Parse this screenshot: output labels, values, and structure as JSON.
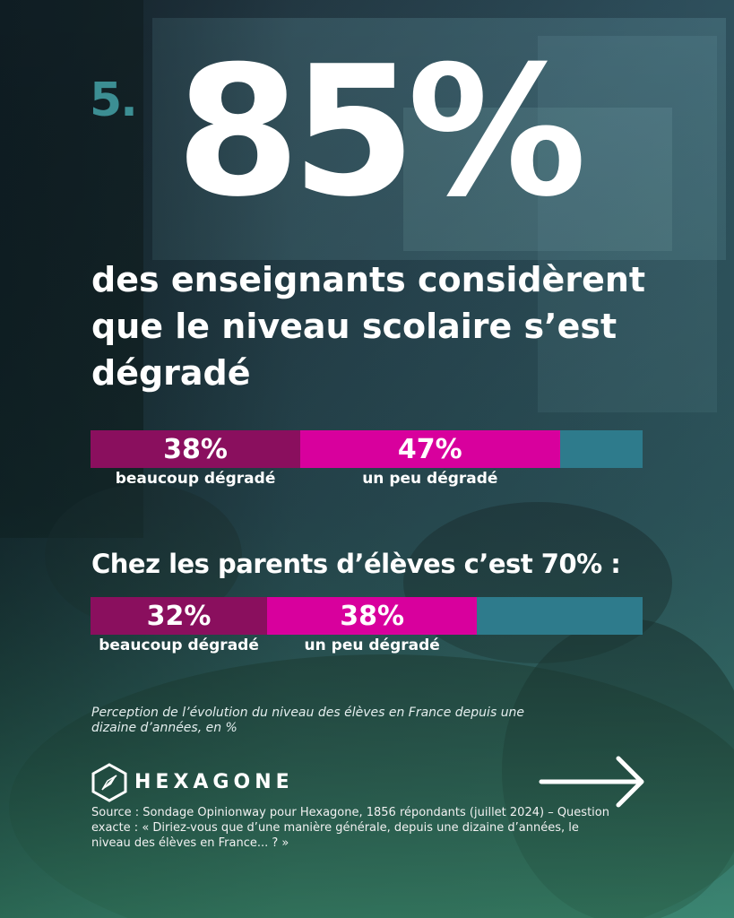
{
  "headline": {
    "number": "5.",
    "big_stat": "85%",
    "text": "des enseignants considèrent que le niveau scolaire s’est dégradé"
  },
  "subheading": "Chez les parents d’élèves c’est 70% :",
  "note": "Perception de l’évolution du niveau des élèves en France depuis une dizaine d’années, en %",
  "brand": "HEXAGONE",
  "source": "Source : Sondage Opinionway pour Hexagone, 1856 répondants (juillet 2024) – Question exacte : «  Diriez-vous que d’une manière générale, depuis une dizaine d’années, le niveau des élèves en France... ? »",
  "colors": {
    "beaucoup": "#8a0f5e",
    "un_peu": "#d8009d",
    "rest": "#2e7b8c",
    "number": "#3c8e93"
  },
  "chart_data": [
    {
      "type": "bar",
      "orientation": "horizontal-stacked",
      "series": [
        {
          "name": "beaucoup dégradé",
          "value": 38,
          "label": "38%"
        },
        {
          "name": "un peu dégradé",
          "value": 47,
          "label": "47%"
        },
        {
          "value": 15
        }
      ]
    },
    {
      "type": "bar",
      "orientation": "horizontal-stacked",
      "series": [
        {
          "name": "beaucoup dégradé",
          "value": 32,
          "label": "32%"
        },
        {
          "name": "un peu dégradé",
          "value": 38,
          "label": "38%"
        },
        {
          "value": 30
        }
      ]
    }
  ]
}
